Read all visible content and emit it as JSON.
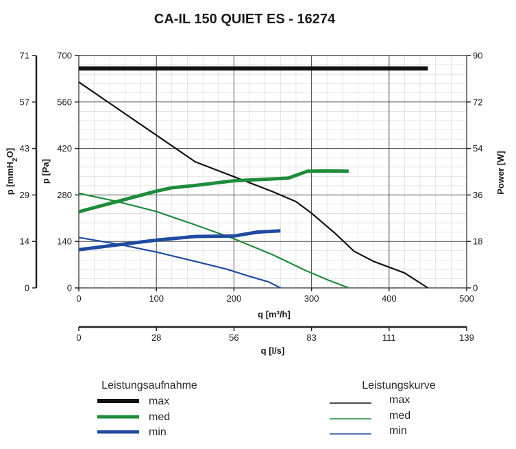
{
  "chart_data": {
    "type": "line",
    "title": "CA-IL 150 QUIET ES - 16274",
    "x_axis": {
      "label": "q [m³/h]",
      "range": [
        0,
        500
      ],
      "ticks": [
        0,
        100,
        200,
        300,
        400,
        500
      ]
    },
    "x2_axis": {
      "label": "q [l/s]",
      "range": [
        0,
        139
      ],
      "tick_labels": [
        "0",
        "28",
        "56",
        "83",
        "111",
        "139"
      ]
    },
    "y_axis": {
      "label": "p [Pa]",
      "range": [
        0,
        700
      ],
      "ticks": [
        0,
        140,
        280,
        420,
        560,
        700
      ]
    },
    "y_outer_axis": {
      "label": "p [mmH2O]",
      "range": [
        0,
        71
      ],
      "tick_labels": [
        "0",
        "14",
        "29",
        "43",
        "57",
        "71"
      ]
    },
    "y_right_axis": {
      "label": "Power [W]",
      "range": [
        0,
        90
      ],
      "ticks": [
        0,
        18,
        36,
        54,
        72,
        90
      ]
    },
    "grid": true,
    "colors": {
      "max": "#111111",
      "med": "#1e8c3a",
      "min": "#1f4aa0"
    },
    "series": [
      {
        "name": "max",
        "group": "Leistungskurve",
        "axis": "pressure",
        "points": [
          [
            0,
            620
          ],
          [
            50,
            540
          ],
          [
            100,
            460
          ],
          [
            150,
            380
          ],
          [
            200,
            335
          ],
          [
            250,
            290
          ],
          [
            280,
            260
          ],
          [
            300,
            225
          ],
          [
            330,
            165
          ],
          [
            355,
            110
          ],
          [
            380,
            80
          ],
          [
            420,
            45
          ],
          [
            450,
            0
          ]
        ]
      },
      {
        "name": "med",
        "group": "Leistungskurve",
        "axis": "pressure",
        "points": [
          [
            0,
            285
          ],
          [
            50,
            260
          ],
          [
            100,
            230
          ],
          [
            150,
            190
          ],
          [
            200,
            148
          ],
          [
            250,
            100
          ],
          [
            290,
            55
          ],
          [
            320,
            25
          ],
          [
            348,
            0
          ]
        ]
      },
      {
        "name": "min",
        "group": "Leistungskurve",
        "axis": "pressure",
        "points": [
          [
            0,
            152
          ],
          [
            50,
            132
          ],
          [
            100,
            108
          ],
          [
            150,
            80
          ],
          [
            190,
            57
          ],
          [
            220,
            35
          ],
          [
            245,
            18
          ],
          [
            260,
            0
          ]
        ]
      },
      {
        "name": "max",
        "group": "Leistungsaufnahme",
        "axis": "power",
        "points": [
          [
            0,
            85
          ],
          [
            450,
            85
          ]
        ]
      },
      {
        "name": "med",
        "group": "Leistungsaufnahme",
        "axis": "power",
        "points": [
          [
            0,
            29.5
          ],
          [
            50,
            33.5
          ],
          [
            100,
            37.5
          ],
          [
            120,
            38.8
          ],
          [
            150,
            39.7
          ],
          [
            200,
            41.5
          ],
          [
            250,
            42.2
          ],
          [
            270,
            42.5
          ],
          [
            295,
            45.2
          ],
          [
            320,
            45.3
          ],
          [
            348,
            45.2
          ]
        ]
      },
      {
        "name": "min",
        "group": "Leistungsaufnahme",
        "axis": "power",
        "points": [
          [
            0,
            14.8
          ],
          [
            50,
            16.7
          ],
          [
            100,
            18.5
          ],
          [
            150,
            19.9
          ],
          [
            200,
            20.1
          ],
          [
            230,
            21.6
          ],
          [
            260,
            22.1
          ]
        ]
      }
    ],
    "legend": {
      "power_title": "Leistungsaufnahme",
      "curve_title": "Leistungskurve",
      "power_items": [
        "max",
        "med",
        "min"
      ],
      "curve_items": [
        "max",
        "med",
        "min"
      ],
      "placement": "bottom"
    }
  }
}
